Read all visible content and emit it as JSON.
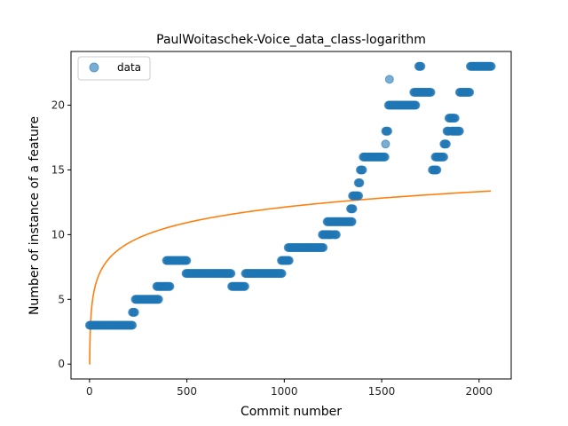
{
  "chart_data": {
    "type": "scatter",
    "title": "PaulWoitaschek-Voice_data_class-logarithm",
    "xlabel": "Commit number",
    "ylabel": "Number of instance of a feature",
    "xlim": [
      -95,
      2165
    ],
    "ylim": [
      -1.15,
      24.15
    ],
    "x_ticks": [
      0,
      500,
      1000,
      1500,
      2000
    ],
    "y_ticks": [
      0,
      5,
      10,
      15,
      20
    ],
    "legend": {
      "position": "top-left",
      "entries": [
        "data"
      ]
    },
    "colors": {
      "scatter": "#1f77b4",
      "fit": "#ff7f0e"
    },
    "series": [
      {
        "name": "data",
        "kind": "scatter-segments",
        "segments": [
          [
            0,
            220,
            3
          ],
          [
            220,
            235,
            4
          ],
          [
            235,
            355,
            5
          ],
          [
            345,
            415,
            6
          ],
          [
            395,
            500,
            8
          ],
          [
            495,
            730,
            7
          ],
          [
            730,
            800,
            6
          ],
          [
            800,
            990,
            7
          ],
          [
            985,
            1025,
            8
          ],
          [
            1020,
            1200,
            9
          ],
          [
            1195,
            1245,
            10
          ],
          [
            1220,
            1350,
            11
          ],
          [
            1255,
            1270,
            10
          ],
          [
            1340,
            1355,
            12
          ],
          [
            1350,
            1385,
            13
          ],
          [
            1380,
            1390,
            14
          ],
          [
            1390,
            1405,
            15
          ],
          [
            1405,
            1520,
            16
          ],
          [
            1520,
            1535,
            18
          ],
          [
            1535,
            1675,
            20
          ],
          [
            1665,
            1755,
            21
          ],
          [
            1690,
            1705,
            23
          ],
          [
            1760,
            1785,
            15
          ],
          [
            1775,
            1820,
            16
          ],
          [
            1820,
            1835,
            17
          ],
          [
            1835,
            1850,
            18
          ],
          [
            1845,
            1880,
            19
          ],
          [
            1860,
            1900,
            18
          ],
          [
            1900,
            1955,
            21
          ],
          [
            1955,
            2065,
            23
          ]
        ],
        "outliers": [
          [
            1520,
            17
          ],
          [
            1540,
            22
          ]
        ]
      },
      {
        "name": "",
        "kind": "line",
        "fit": {
          "form": "log",
          "a": 0.2,
          "b": 1.726,
          "x_start": 0,
          "x_end": 2060
        }
      }
    ]
  }
}
